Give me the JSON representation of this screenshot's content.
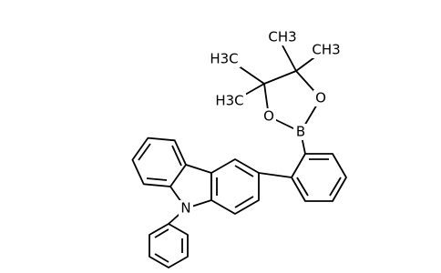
{
  "atoms": {
    "nitrogen": "N",
    "boron": "B",
    "oxygen_right": "O",
    "oxygen_left": "O",
    "methyls": [
      "CH3",
      "CH3",
      "H3C",
      "H3C"
    ]
  }
}
